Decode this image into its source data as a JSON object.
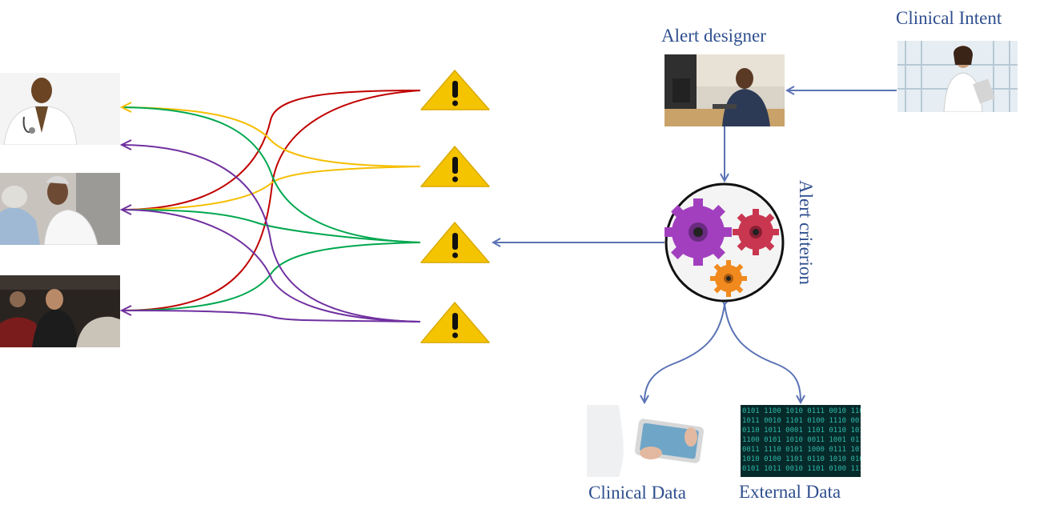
{
  "labels": {
    "clinical_intent": "Clinical Intent",
    "alert_designer": "Alert designer",
    "alert_criterion": "Alert criterion",
    "clinical_data": "Clinical Data",
    "external_data": "External Data"
  },
  "recipients": [
    "physician",
    "caregiver-with-patient",
    "paramedics"
  ],
  "alerts": [
    "alert-1",
    "alert-2",
    "alert-3",
    "alert-4"
  ],
  "colors": {
    "arrow": "#5a72b5",
    "text": "#2f4f8f",
    "red": "#c00000",
    "yellow": "#f6be00",
    "green": "#00a84f",
    "purple": "#7030a0",
    "warning_fill": "#f5c400"
  },
  "icons": {
    "warning": "warning-triangle-icon",
    "gears": "gears-icon"
  }
}
